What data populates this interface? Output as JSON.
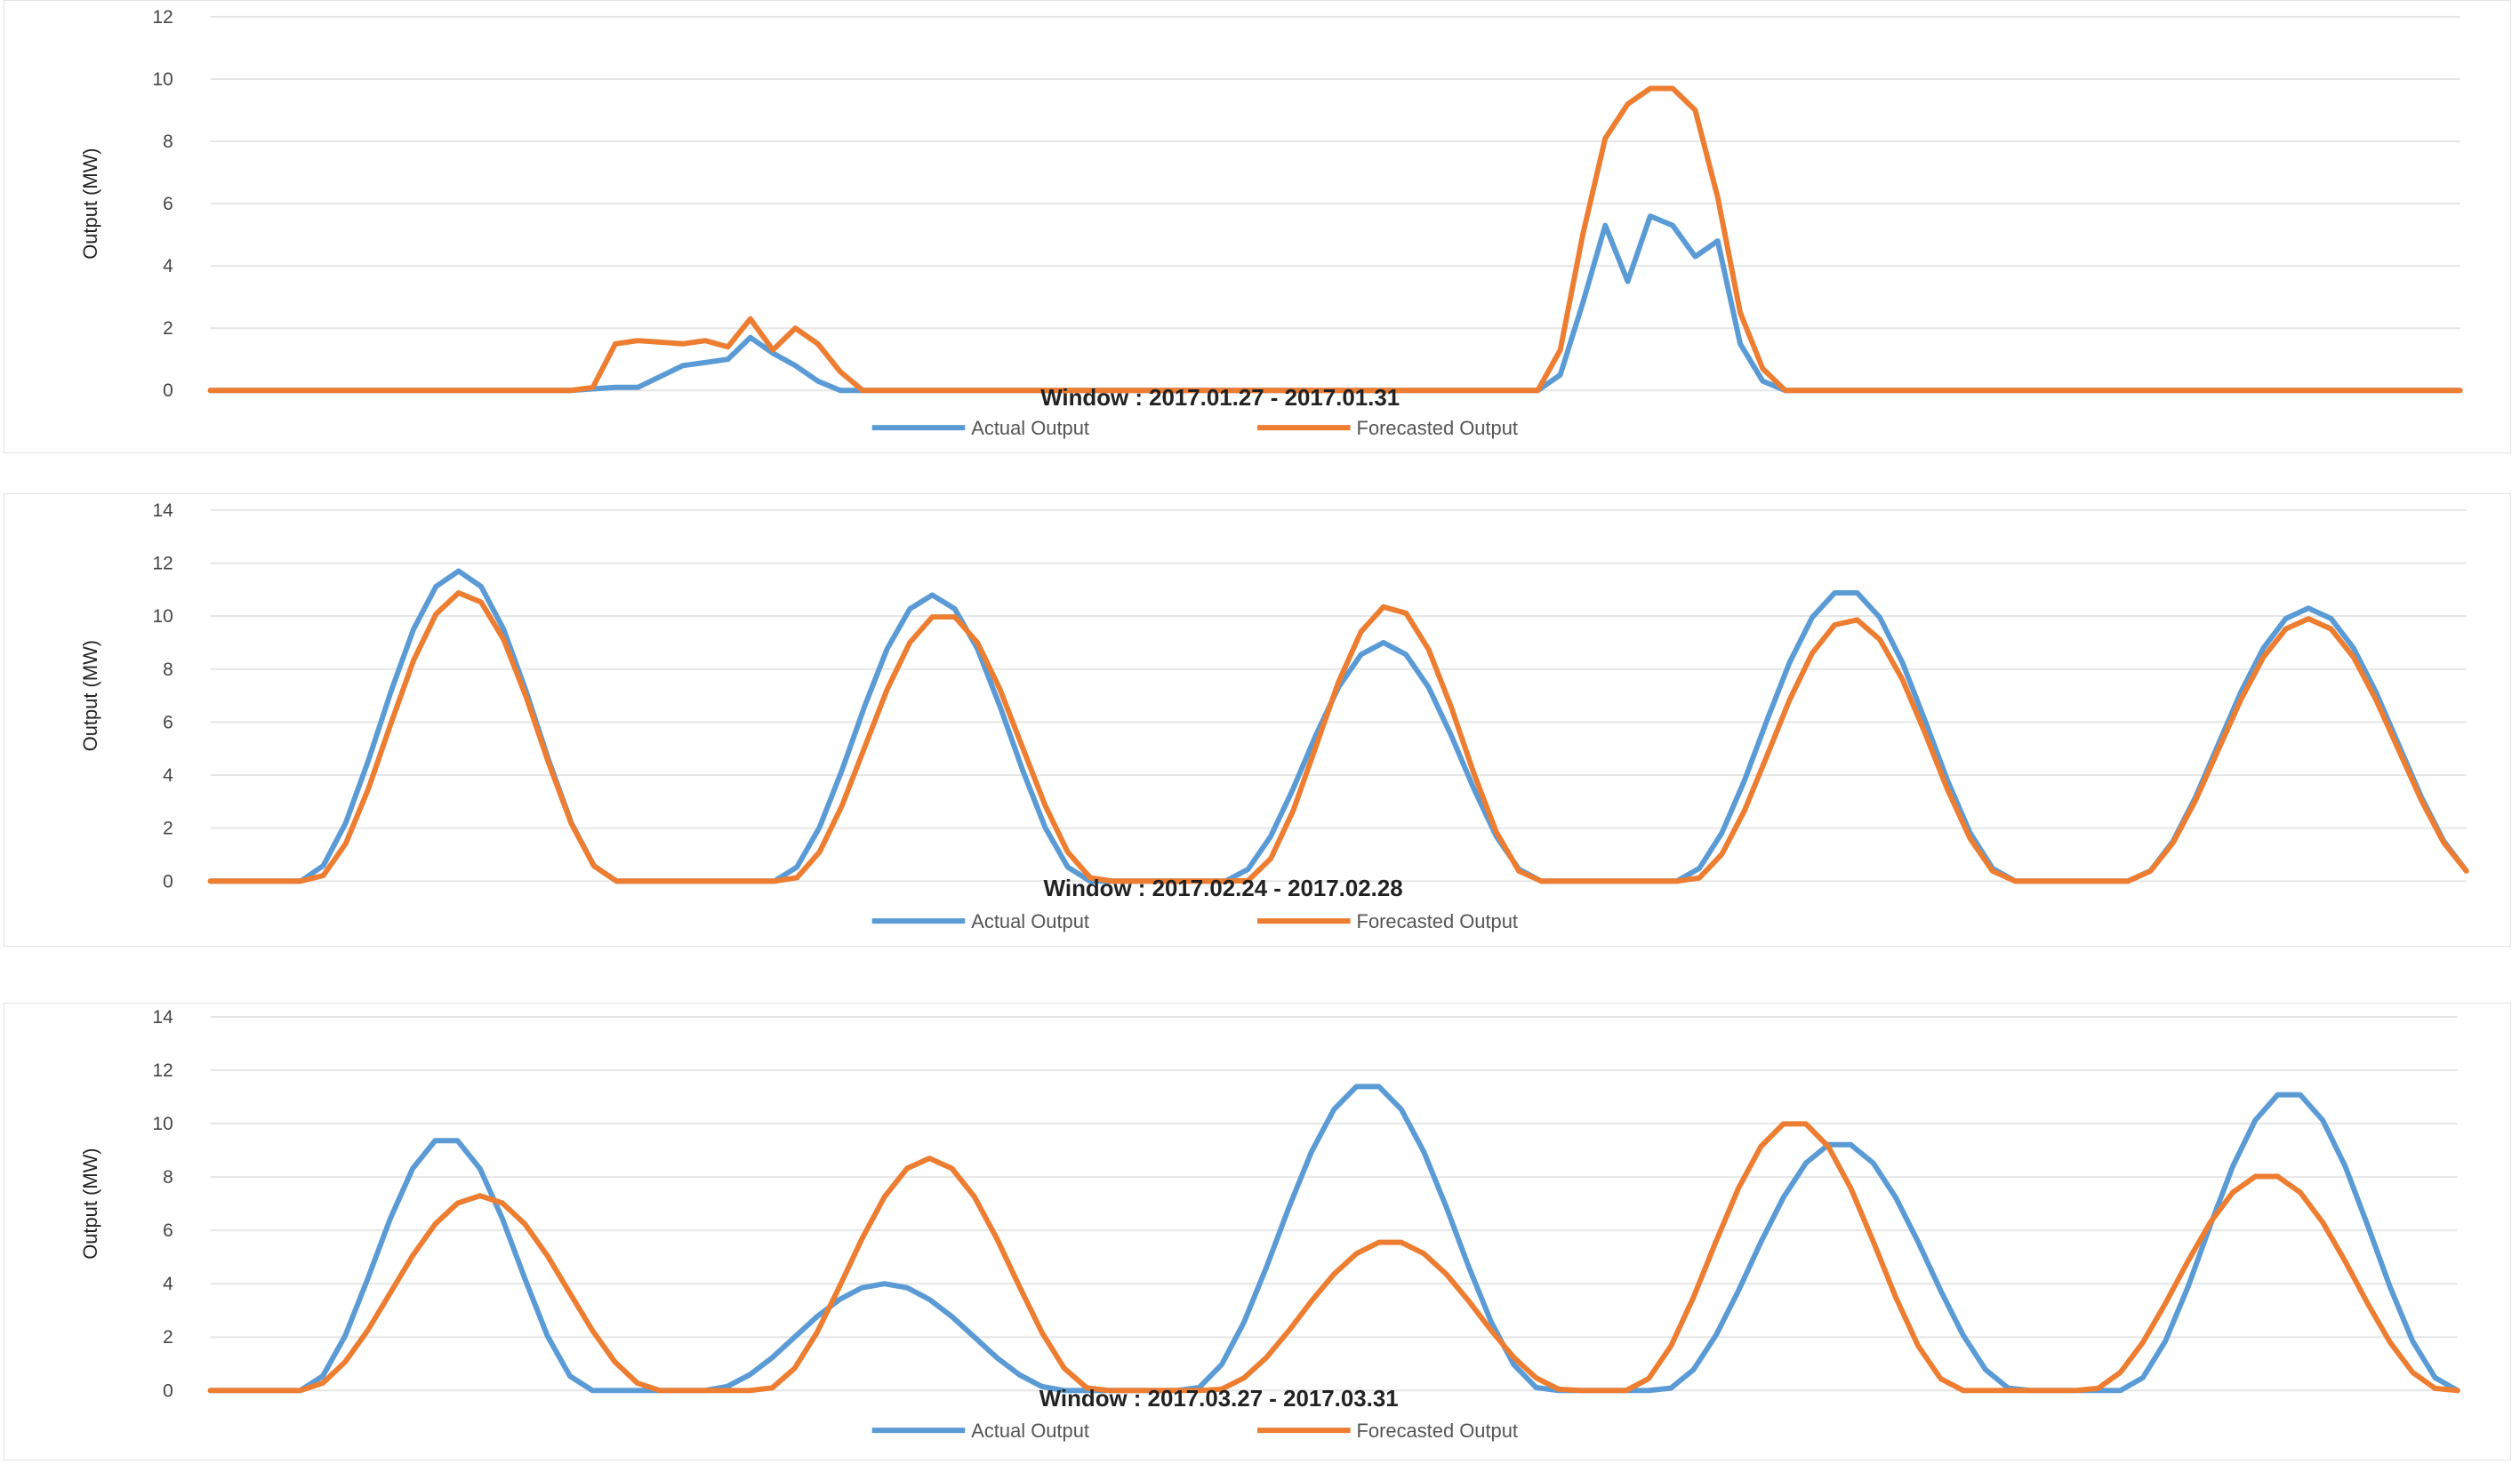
{
  "colors": {
    "actual": "#5b9bd5",
    "forecast": "#ed7d31",
    "grid": "#e6e6e6"
  },
  "chart_data": [
    {
      "type": "line",
      "title": "Window : 2017.01.27 - 2017.01.31",
      "ylabel": "Output (MW)",
      "ylim": [
        0,
        12
      ],
      "yticks": [
        0,
        2,
        4,
        6,
        8,
        10,
        12
      ],
      "grid": true,
      "legend": "bottom",
      "x": [
        0,
        6,
        9,
        10,
        11,
        12,
        13,
        14,
        15,
        16,
        17,
        18,
        19,
        21,
        22,
        23,
        24,
        25,
        26,
        27,
        28,
        29,
        33,
        34,
        35,
        36,
        37,
        38,
        39,
        40,
        41,
        42,
        43,
        44,
        45,
        46,
        47,
        57,
        58,
        59,
        60,
        61,
        62,
        63,
        64,
        65,
        66,
        67,
        68,
        69,
        70,
        71,
        81,
        82,
        83,
        84,
        85,
        86,
        87,
        88,
        89,
        90,
        91,
        92,
        93,
        94,
        95,
        96,
        97,
        98,
        99,
        100
      ],
      "series": [
        {
          "name": "Actual Output",
          "values": [
            0,
            0,
            0,
            0,
            0,
            0,
            0,
            0,
            0,
            0,
            0.05,
            0.1,
            0.1,
            0.8,
            0.9,
            1.0,
            1.7,
            1.2,
            0.8,
            0.3,
            0,
            0,
            0,
            0,
            0,
            0,
            0,
            0,
            0,
            0,
            0,
            0,
            0,
            0,
            0,
            0,
            0,
            0,
            0,
            0,
            0.5,
            2.8,
            5.3,
            3.5,
            5.6,
            5.3,
            4.3,
            4.8,
            1.5,
            0.3,
            0,
            0,
            0,
            0,
            0,
            0,
            0,
            0,
            0,
            0,
            0,
            0,
            0,
            0,
            0,
            0,
            0,
            0,
            0,
            0,
            0,
            0
          ]
        },
        {
          "name": "Forecasted Output",
          "values": [
            0,
            0,
            0,
            0,
            0,
            0,
            0,
            0,
            0,
            0,
            0.1,
            1.5,
            1.6,
            1.5,
            1.6,
            1.4,
            2.3,
            1.3,
            2.0,
            1.5,
            0.6,
            0,
            0,
            0,
            0,
            0,
            0,
            0,
            0,
            0,
            0,
            0,
            0,
            0,
            0,
            0,
            0,
            0,
            0,
            0,
            1.3,
            5.0,
            8.1,
            9.2,
            9.7,
            9.7,
            9.0,
            6.2,
            2.5,
            0.7,
            0,
            0,
            0,
            0,
            0,
            0,
            0,
            0,
            0,
            0,
            0,
            0,
            0,
            0,
            0,
            0,
            0,
            0,
            0,
            0,
            0,
            0
          ]
        }
      ]
    },
    {
      "type": "line",
      "title": "Window : 2017.02.24 - 2017.02.28",
      "ylabel": "Output (MW)",
      "ylim": [
        0,
        14
      ],
      "yticks": [
        0,
        2,
        4,
        6,
        8,
        10,
        12,
        14
      ],
      "grid": true,
      "legend": "bottom",
      "x": [],
      "series": [
        {
          "name": "Actual Output",
          "values": []
        },
        {
          "name": "Forecasted Output",
          "values": []
        }
      ]
    },
    {
      "type": "line",
      "title": "Window : 2017.03.27 - 2017.03.31",
      "ylabel": "Output (MW)",
      "ylim": [
        0,
        14
      ],
      "yticks": [
        0,
        2,
        4,
        6,
        8,
        10,
        12,
        14
      ],
      "grid": true,
      "legend": "bottom",
      "x": [],
      "series": [
        {
          "name": "Actual Output",
          "values": []
        },
        {
          "name": "Forecasted Output",
          "values": []
        }
      ]
    }
  ]
}
